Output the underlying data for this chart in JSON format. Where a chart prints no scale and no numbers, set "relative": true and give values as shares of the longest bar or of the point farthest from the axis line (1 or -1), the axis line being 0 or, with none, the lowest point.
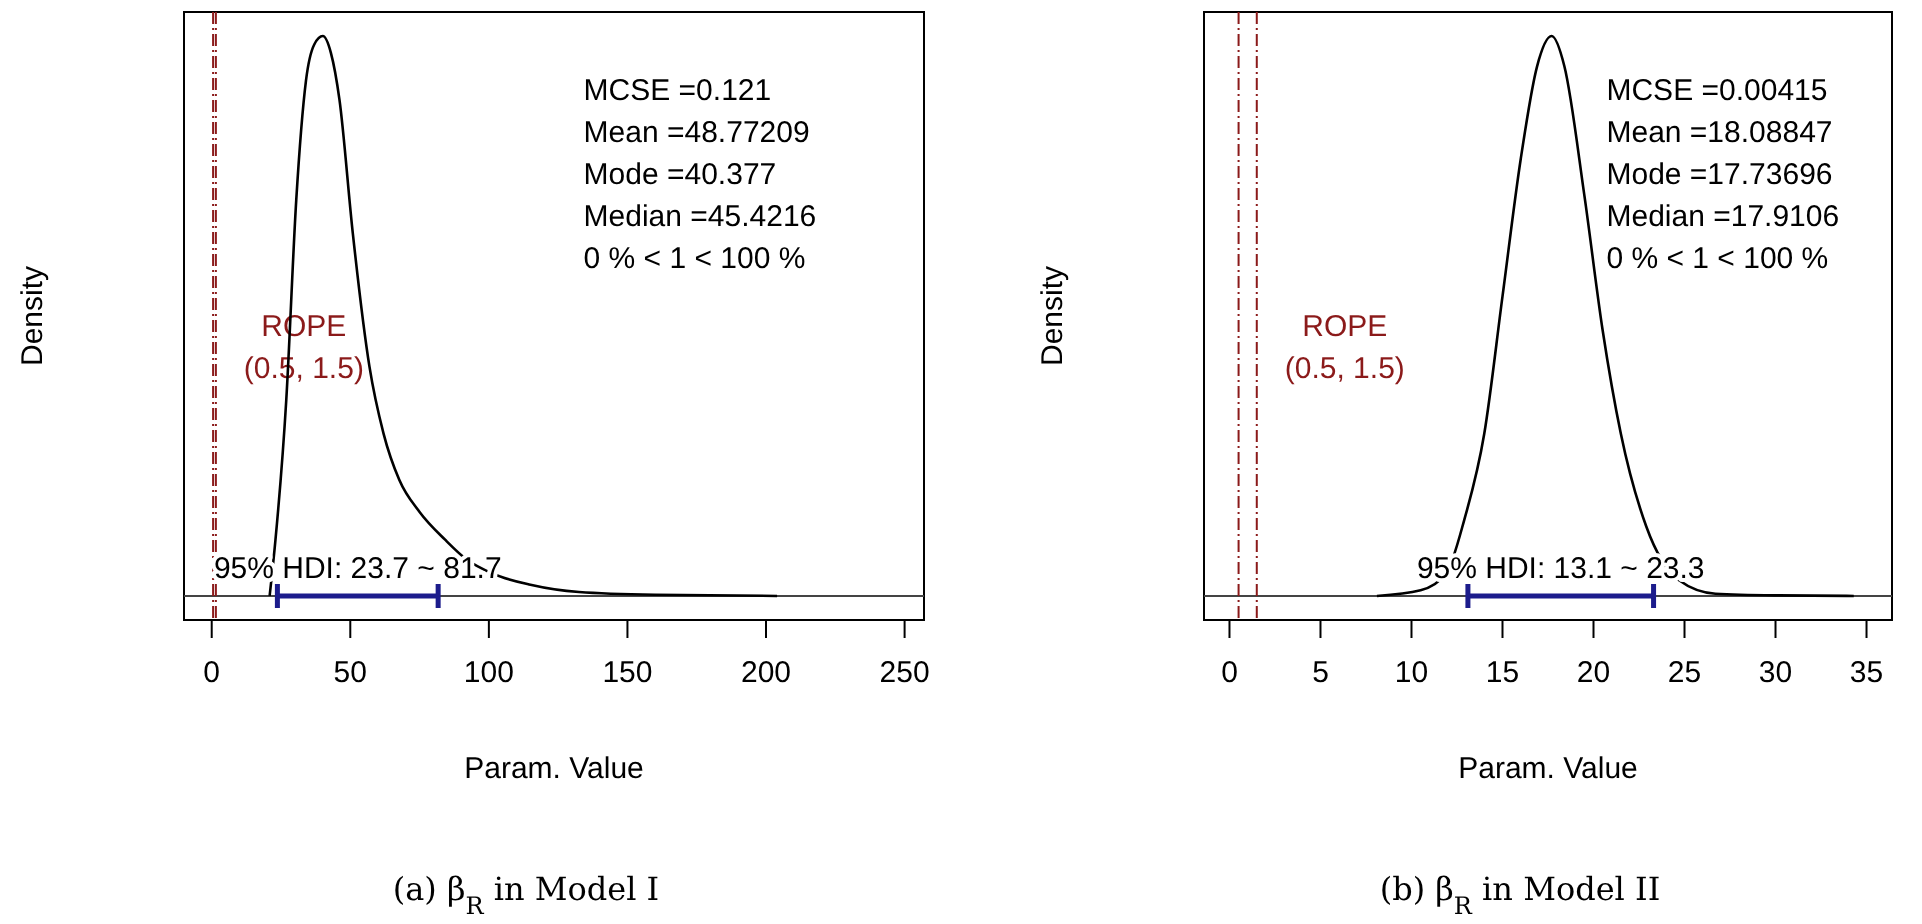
{
  "chart_data": [
    {
      "type": "line",
      "title": "(a) β$_{R}$ in Model I",
      "xlabel": "Param. Value",
      "ylabel": "Density",
      "relative": true,
      "xlim": [
        -10,
        257
      ],
      "xticks": [
        0,
        50,
        100,
        150,
        200,
        250
      ],
      "tick_labels": "x",
      "legend": false,
      "series": [
        {
          "x": [
            20.9,
            23,
            26.9,
            30.5,
            34,
            37,
            40.1,
            43,
            46.1,
            50.9,
            56.9,
            62,
            67.7,
            75,
            84.3,
            92,
            101.3,
            115,
            132.5,
            160,
            204
          ],
          "values": [
            0,
            0.1,
            0.35,
            0.707,
            0.92,
            0.985,
            1,
            0.97,
            0.886,
            0.648,
            0.41,
            0.29,
            0.207,
            0.15,
            0.1,
            0.065,
            0.04,
            0.02,
            0.007,
            0.002,
            0
          ],
          "color": "#000000"
        },
        {
          "name": "95% HDI: 23.7 ~ 81.7",
          "type": "line",
          "x": [
            23.7,
            81.7
          ],
          "values": [
            0,
            0
          ],
          "color": "#1c1c8c"
        }
      ],
      "ref_lines": [
        {
          "axis": "x",
          "value": 0.5,
          "label": "ROPE",
          "color": "#8b1a1a",
          "line_style": "dashed"
        },
        {
          "axis": "x",
          "value": 1.5,
          "label": "(0.5, 1.5)",
          "color": "#8b1a1a",
          "line_style": "dashed"
        }
      ],
      "annotations": [
        "MCSE =0.121",
        "Mean =48.77209",
        "Mode =40.377",
        "Median =45.4216",
        "0 % < 1 < 100 %"
      ]
    },
    {
      "type": "line",
      "title": "(b) β$_{R}$ in Model II",
      "xlabel": "Param. Value",
      "ylabel": "Density",
      "relative": true,
      "xlim": [
        -1.4,
        36.4
      ],
      "xticks": [
        0,
        5,
        10,
        15,
        20,
        25,
        30,
        35
      ],
      "tick_labels": "x",
      "legend": false,
      "series": [
        {
          "x": [
            8.1,
            10.5,
            11.9,
            12.9,
            14,
            15,
            16,
            16.9,
            17.7,
            18.4,
            19.5,
            20.5,
            21.5,
            22.9,
            24.7,
            26.7,
            30,
            34.3
          ],
          "values": [
            0,
            0.01,
            0.04,
            0.136,
            0.29,
            0.535,
            0.78,
            0.946,
            1,
            0.946,
            0.715,
            0.475,
            0.29,
            0.124,
            0.028,
            0.004,
            0.001,
            0
          ],
          "color": "#000000"
        },
        {
          "name": "95% HDI: 13.1 ~ 23.3",
          "type": "line",
          "x": [
            13.1,
            23.3
          ],
          "values": [
            0,
            0
          ],
          "color": "#1c1c8c"
        }
      ],
      "ref_lines": [
        {
          "axis": "x",
          "value": 0.5,
          "label": "ROPE",
          "color": "#8b1a1a",
          "line_style": "dashed"
        },
        {
          "axis": "x",
          "value": 1.5,
          "label": "(0.5, 1.5)",
          "color": "#8b1a1a",
          "line_style": "dashed"
        }
      ],
      "annotations": [
        "MCSE =0.00415",
        "Mean =18.08847",
        "Mode =17.73696",
        "Median =17.9106",
        "0 % < 1 < 100 %"
      ]
    }
  ]
}
